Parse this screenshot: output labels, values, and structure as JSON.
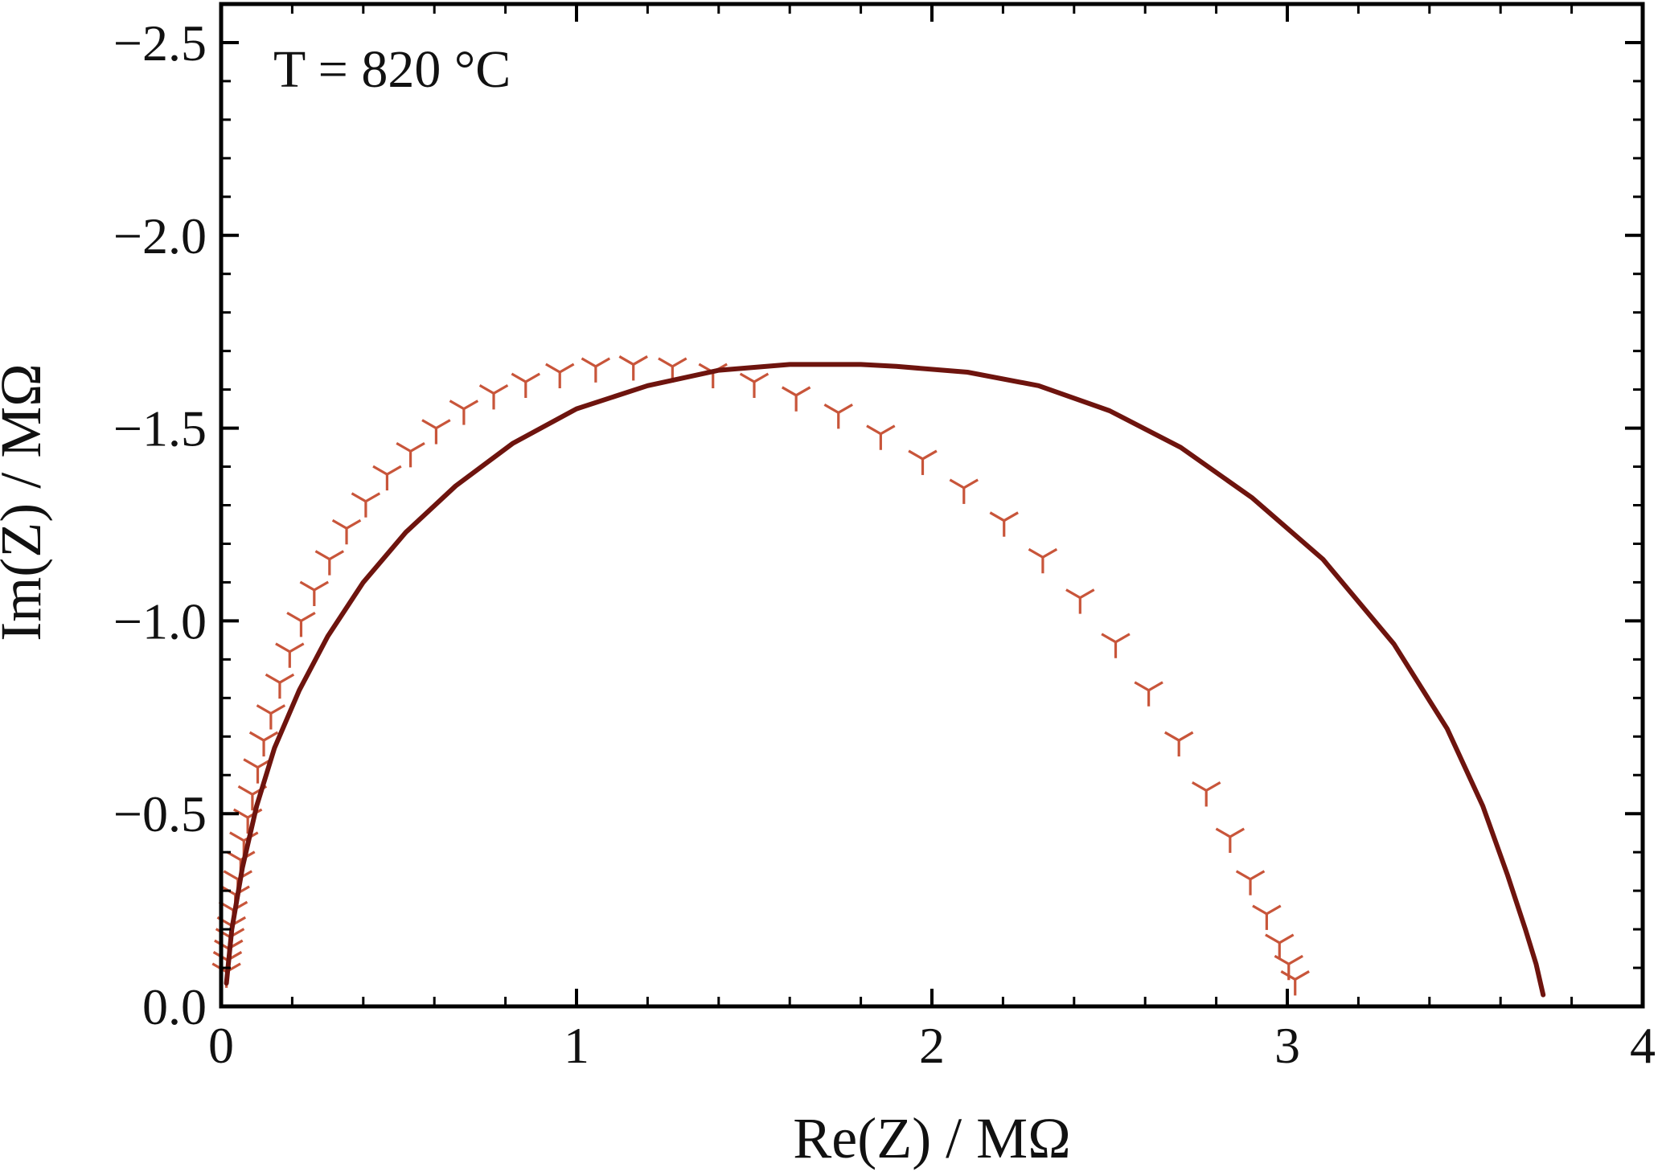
{
  "chart_data": {
    "type": "scatter",
    "xlabel": "Re(Z) / MΩ",
    "ylabel": "Im(Z) / MΩ",
    "annotation": "T = 820 °C",
    "xlim": [
      0,
      4
    ],
    "ylim": [
      0,
      -2.6
    ],
    "y_axis_inverted": true,
    "grid": false,
    "legend": "none",
    "x_ticks": [
      "0",
      "1",
      "2",
      "3",
      "4"
    ],
    "y_ticks": [
      "0.0",
      "−0.5",
      "−1.0",
      "−1.5",
      "−2.0",
      "−2.5"
    ],
    "x_tick_values": [
      0,
      1,
      2,
      3,
      4
    ],
    "y_tick_values": [
      0,
      -0.5,
      -1.0,
      -1.5,
      -2.0,
      -2.5
    ],
    "colors": {
      "data": "#C8553A",
      "fit": "#6E140E",
      "axis": "#000000"
    },
    "series": [
      {
        "style": "markers",
        "marker": "tri_down",
        "points": [
          [
            0.015,
            -0.09
          ],
          [
            0.018,
            -0.12
          ],
          [
            0.021,
            -0.15
          ],
          [
            0.025,
            -0.18
          ],
          [
            0.029,
            -0.21
          ],
          [
            0.034,
            -0.25
          ],
          [
            0.04,
            -0.29
          ],
          [
            0.047,
            -0.33
          ],
          [
            0.055,
            -0.38
          ],
          [
            0.064,
            -0.43
          ],
          [
            0.075,
            -0.49
          ],
          [
            0.088,
            -0.55
          ],
          [
            0.103,
            -0.62
          ],
          [
            0.12,
            -0.69
          ],
          [
            0.14,
            -0.76
          ],
          [
            0.165,
            -0.84
          ],
          [
            0.193,
            -0.92
          ],
          [
            0.225,
            -1.0
          ],
          [
            0.262,
            -1.08
          ],
          [
            0.305,
            -1.16
          ],
          [
            0.353,
            -1.24
          ],
          [
            0.407,
            -1.31
          ],
          [
            0.467,
            -1.38
          ],
          [
            0.533,
            -1.44
          ],
          [
            0.605,
            -1.5
          ],
          [
            0.683,
            -1.55
          ],
          [
            0.767,
            -1.59
          ],
          [
            0.857,
            -1.62
          ],
          [
            0.953,
            -1.645
          ],
          [
            1.054,
            -1.66
          ],
          [
            1.16,
            -1.665
          ],
          [
            1.27,
            -1.66
          ],
          [
            1.384,
            -1.645
          ],
          [
            1.5,
            -1.62
          ],
          [
            1.618,
            -1.585
          ],
          [
            1.737,
            -1.54
          ],
          [
            1.856,
            -1.485
          ],
          [
            1.974,
            -1.42
          ],
          [
            2.09,
            -1.345
          ],
          [
            2.203,
            -1.26
          ],
          [
            2.312,
            -1.165
          ],
          [
            2.417,
            -1.06
          ],
          [
            2.517,
            -0.945
          ],
          [
            2.61,
            -0.82
          ],
          [
            2.695,
            -0.69
          ],
          [
            2.772,
            -0.56
          ],
          [
            2.839,
            -0.44
          ],
          [
            2.896,
            -0.33
          ],
          [
            2.942,
            -0.24
          ],
          [
            2.978,
            -0.165
          ],
          [
            3.004,
            -0.11
          ],
          [
            3.022,
            -0.07
          ]
        ]
      },
      {
        "style": "line",
        "points": [
          [
            0.015,
            -0.06
          ],
          [
            0.03,
            -0.2
          ],
          [
            0.06,
            -0.36
          ],
          [
            0.1,
            -0.52
          ],
          [
            0.15,
            -0.67
          ],
          [
            0.22,
            -0.82
          ],
          [
            0.3,
            -0.96
          ],
          [
            0.4,
            -1.1
          ],
          [
            0.52,
            -1.23
          ],
          [
            0.66,
            -1.35
          ],
          [
            0.82,
            -1.46
          ],
          [
            1.0,
            -1.55
          ],
          [
            1.2,
            -1.61
          ],
          [
            1.4,
            -1.65
          ],
          [
            1.6,
            -1.665
          ],
          [
            1.8,
            -1.665
          ],
          [
            1.9,
            -1.66
          ],
          [
            2.1,
            -1.645
          ],
          [
            2.3,
            -1.61
          ],
          [
            2.5,
            -1.545
          ],
          [
            2.7,
            -1.45
          ],
          [
            2.9,
            -1.32
          ],
          [
            3.1,
            -1.16
          ],
          [
            3.3,
            -0.94
          ],
          [
            3.45,
            -0.72
          ],
          [
            3.55,
            -0.52
          ],
          [
            3.62,
            -0.34
          ],
          [
            3.67,
            -0.2
          ],
          [
            3.7,
            -0.11
          ],
          [
            3.72,
            -0.03
          ]
        ]
      }
    ]
  }
}
